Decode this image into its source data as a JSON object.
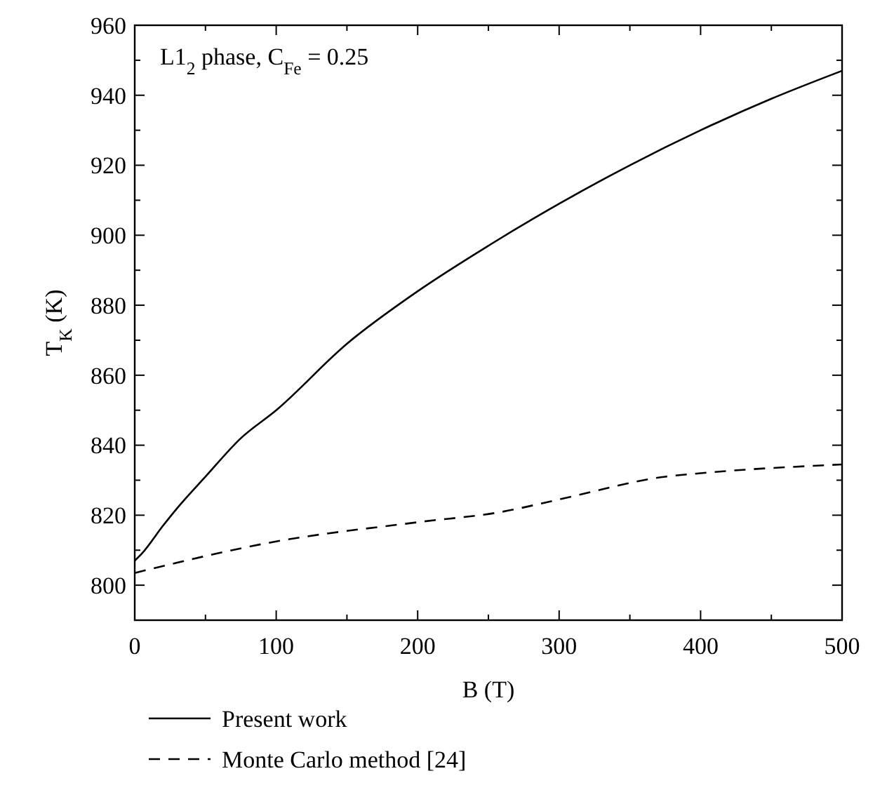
{
  "chart_data": {
    "type": "line",
    "annotations": [
      "L1$_{2}$ phase, C$_{Fe}$ = 0.25"
    ],
    "xlabel": "B (T)",
    "ylabel": "T$_{K}$ (K)",
    "xlim": [
      0,
      500
    ],
    "xticks": [
      0,
      {
        "value": 50,
        "label": null
      },
      100,
      {
        "value": 150,
        "label": null
      },
      200,
      {
        "value": 250,
        "label": null
      },
      300,
      {
        "value": 350,
        "label": null
      },
      400,
      {
        "value": 450,
        "label": null
      },
      500
    ],
    "ylim": [
      790,
      960
    ],
    "yticks": [
      800,
      {
        "value": 810,
        "label": null
      },
      820,
      {
        "value": 830,
        "label": null
      },
      840,
      {
        "value": 850,
        "label": null
      },
      860,
      {
        "value": 870,
        "label": null
      },
      880,
      {
        "value": 890,
        "label": null
      },
      900,
      {
        "value": 910,
        "label": null
      },
      920,
      {
        "value": 930,
        "label": null
      },
      940,
      {
        "value": 950,
        "label": null
      },
      960
    ],
    "legend": "bottom",
    "grid": false,
    "series": [
      {
        "name": "Present work",
        "color": "#000000",
        "line_style": "solid",
        "x": [
          0,
          5,
          20,
          30,
          50,
          75,
          100,
          150,
          200,
          250,
          300,
          350,
          400,
          450,
          500
        ],
        "values": [
          807,
          809,
          817,
          822,
          831,
          842,
          850,
          869,
          884,
          897,
          909,
          920,
          930,
          939,
          947
        ]
      },
      {
        "name": "Monte Carlo method [24]",
        "color": "#000000",
        "line_style": "dashed",
        "x": [
          0,
          100,
          200,
          260,
          300,
          375,
          400,
          500
        ],
        "values": [
          803.5,
          812.5,
          818,
          821,
          824.5,
          831,
          832,
          834.5
        ]
      }
    ]
  }
}
